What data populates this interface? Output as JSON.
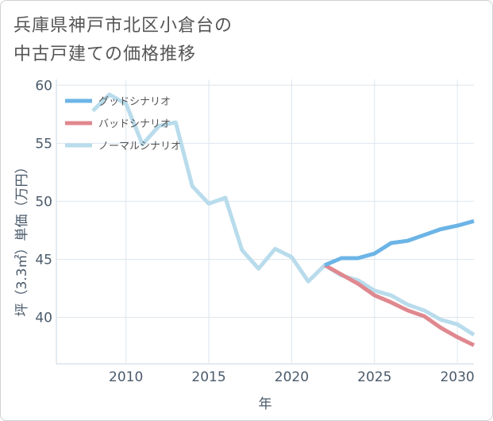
{
  "title_line1": "兵庫県神戸市北区小倉台の",
  "title_line2": "中古戸建ての価格推移",
  "chart_data": {
    "type": "line",
    "xlabel": "年",
    "ylabel": "坪（3.3㎡）単価（万円）",
    "xlim": [
      2005.8,
      2031
    ],
    "ylim": [
      36,
      60.5
    ],
    "xticks": [
      2010,
      2015,
      2020,
      2025,
      2030
    ],
    "yticks": [
      40,
      45,
      50,
      55,
      60
    ],
    "grid": true,
    "legend_position": "top-left",
    "series": [
      {
        "name": "グッドシナリオ",
        "color": "#6cb4e6",
        "x": [
          2022,
          2023,
          2024,
          2025,
          2026,
          2027,
          2028,
          2029,
          2030,
          2031
        ],
        "values": [
          44.5,
          45.1,
          45.1,
          45.5,
          46.4,
          46.6,
          47.1,
          47.6,
          47.9,
          48.3
        ]
      },
      {
        "name": "バッドシナリオ",
        "color": "#e0888f",
        "x": [
          2022,
          2023,
          2024,
          2025,
          2026,
          2027,
          2028,
          2029,
          2030,
          2031
        ],
        "values": [
          44.5,
          43.7,
          42.9,
          41.9,
          41.3,
          40.6,
          40.1,
          39.1,
          38.3,
          37.6
        ]
      },
      {
        "name": "ノーマルシナリオ",
        "color": "#b9dcec",
        "x": [
          2008,
          2009,
          2010,
          2011,
          2012,
          2013,
          2014,
          2015,
          2016,
          2017,
          2018,
          2019,
          2020,
          2021,
          2022,
          2023,
          2024,
          2025,
          2026,
          2027,
          2028,
          2029,
          2030,
          2031
        ],
        "values": [
          57.8,
          59.2,
          58.4,
          54.9,
          56.5,
          56.8,
          51.3,
          49.8,
          50.3,
          45.8,
          44.2,
          45.9,
          45.2,
          43.1,
          44.5,
          43.6,
          43.2,
          42.3,
          41.9,
          41.1,
          40.6,
          39.8,
          39.4,
          38.5
        ]
      }
    ]
  }
}
